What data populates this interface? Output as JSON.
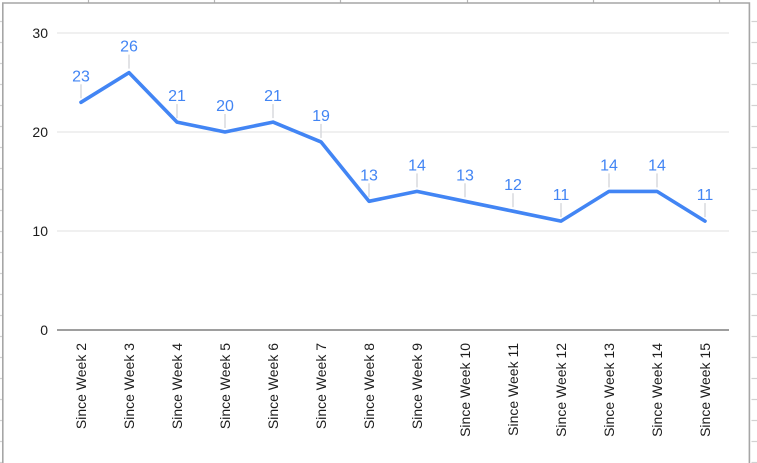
{
  "chart_data": {
    "type": "line",
    "title": "",
    "xlabel": "",
    "ylabel": "",
    "categories": [
      "Since Week 2",
      "Since Week 3",
      "Since Week 4",
      "Since Week 5",
      "Since Week 6",
      "Since Week 7",
      "Since Week 8",
      "Since Week 9",
      "Since Week 10",
      "Since Week 11",
      "Since Week 12",
      "Since Week 13",
      "Since Week 14",
      "Since Week 15"
    ],
    "values": [
      23,
      26,
      21,
      20,
      21,
      19,
      13,
      14,
      13,
      12,
      11,
      14,
      14,
      11
    ],
    "ylim": [
      0,
      30
    ],
    "yticks": [
      0,
      10,
      20,
      30
    ],
    "grid": true,
    "legend_position": "none",
    "data_labels_visible": true,
    "x_labels_rotated": true
  },
  "colors": {
    "series_line": "#4285f4",
    "data_label": "#4285f4",
    "gridline": "#e2e2e2",
    "zero_axis": "#9e9e9e",
    "axis_text": "#1c1c1c",
    "callout": "#dadce0",
    "chart_border": "#a6a6a6",
    "sheet_gridline": "#d2d2d2",
    "sheet_column_tick": "#b5b5b5",
    "background": "#ffffff"
  }
}
